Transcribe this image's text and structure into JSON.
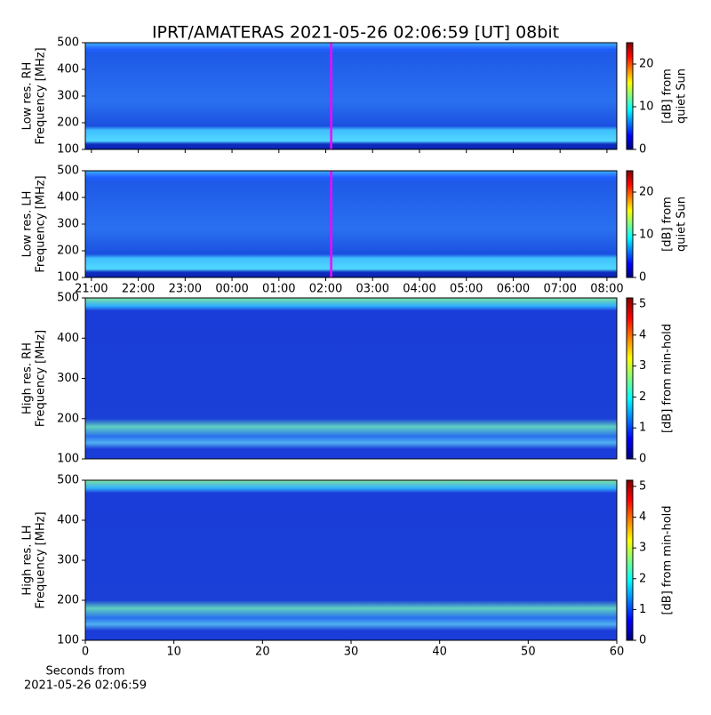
{
  "chart_data": [
    {
      "type": "heatmap",
      "title": "IPRT/AMATERAS 2021-05-26 02:06:59 [UT]   08bit",
      "ylabel": [
        "Low res. RH",
        "Frequency [MHz]"
      ],
      "ylim": [
        100,
        500
      ],
      "yticks": [
        100,
        200,
        300,
        400,
        500
      ],
      "xlim": [
        20.87,
        32.21
      ],
      "xticks": [
        21,
        22,
        23,
        24,
        25,
        26,
        27,
        28,
        29,
        30,
        31,
        32
      ],
      "xticklabels": false,
      "marker": {
        "x": 26.116,
        "color": "#ff00ff"
      },
      "clim": [
        0,
        25
      ],
      "cticks": [
        0,
        10,
        20
      ],
      "clabel": [
        "[dB] from",
        "quiet Sun"
      ]
    },
    {
      "type": "heatmap",
      "ylabel": [
        "Low res. LH",
        "Frequency [MHz]"
      ],
      "ylim": [
        100,
        500
      ],
      "yticks": [
        100,
        200,
        300,
        400,
        500
      ],
      "xlim": [
        20.87,
        32.21
      ],
      "xticks": [
        {
          "value": 21,
          "label": "21:00"
        },
        {
          "value": 22,
          "label": "22:00"
        },
        {
          "value": 23,
          "label": "23:00"
        },
        {
          "value": 24,
          "label": "00:00"
        },
        {
          "value": 25,
          "label": "01:00"
        },
        {
          "value": 26,
          "label": "02:00"
        },
        {
          "value": 27,
          "label": "03:00"
        },
        {
          "value": 28,
          "label": "04:00"
        },
        {
          "value": 29,
          "label": "05:00"
        },
        {
          "value": 30,
          "label": "06:00"
        },
        {
          "value": 31,
          "label": "07:00"
        },
        {
          "value": 32,
          "label": "08:00"
        }
      ],
      "marker": {
        "x": 26.116,
        "color": "#ff00ff"
      },
      "clim": [
        0,
        25
      ],
      "cticks": [
        0,
        10,
        20
      ],
      "clabel": [
        "[dB] from",
        "quiet Sun"
      ]
    },
    {
      "type": "heatmap",
      "ylabel": [
        "High res. RH",
        "Frequency [MHz]"
      ],
      "ylim": [
        100,
        500
      ],
      "yticks": [
        100,
        200,
        300,
        400,
        500
      ],
      "xlim": [
        0,
        60
      ],
      "clim": [
        0,
        5.2
      ],
      "cticks": [
        0,
        1,
        2,
        3,
        4,
        5
      ],
      "clabel": [
        "[dB] from min-hold"
      ]
    },
    {
      "type": "heatmap",
      "ylabel": [
        "High res. LH",
        "Frequency [MHz]"
      ],
      "ylim": [
        100,
        500
      ],
      "yticks": [
        100,
        200,
        300,
        400,
        500
      ],
      "xlim": [
        0,
        60
      ],
      "xticks": [
        0,
        10,
        20,
        30,
        40,
        50,
        60
      ],
      "xlabel": [
        "Seconds from",
        "2021-05-26 02:06:59"
      ],
      "clim": [
        0,
        5.2
      ],
      "cticks": [
        0,
        1,
        2,
        3,
        4,
        5
      ],
      "clabel": [
        "[dB] from min-hold"
      ]
    }
  ]
}
